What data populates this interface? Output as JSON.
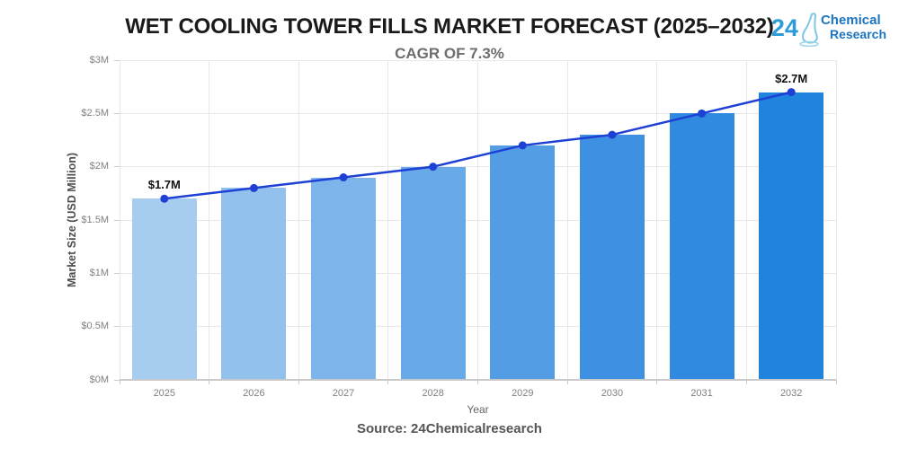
{
  "header": {
    "title": "WET COOLING TOWER FILLS MARKET FORECAST (2025–2032)",
    "subtitle": "CAGR OF 7.3%"
  },
  "logo": {
    "number": "24",
    "line1": "Chemical",
    "line2": "Research",
    "number_color": "#2d9bd8",
    "text_color": "#1d74c0",
    "flask_color": "#7fc6e5"
  },
  "footer": {
    "source": "Source: 24Chemicalresearch"
  },
  "chart_data": {
    "type": "bar",
    "overlay": "line",
    "categories": [
      "2025",
      "2026",
      "2027",
      "2028",
      "2029",
      "2030",
      "2031",
      "2032"
    ],
    "values": [
      1.7,
      1.8,
      1.9,
      2.0,
      2.2,
      2.3,
      2.5,
      2.7
    ],
    "data_labels": [
      "$1.7M",
      "",
      "",
      "",
      "",
      "",
      "",
      "$2.7M"
    ],
    "title": "WET COOLING TOWER FILLS MARKET FORECAST (2025–2032)",
    "subtitle": "CAGR OF 7.3%",
    "xlabel": "Year",
    "ylabel": "Market Size (USD Million)",
    "ylim": [
      0,
      3
    ],
    "y_ticks": [
      {
        "v": 0,
        "label": "$0M"
      },
      {
        "v": 0.5,
        "label": "$0.5M"
      },
      {
        "v": 1,
        "label": "$1M"
      },
      {
        "v": 1.5,
        "label": "$1.5M"
      },
      {
        "v": 2,
        "label": "$2M"
      },
      {
        "v": 2.5,
        "label": "$2.5M"
      },
      {
        "v": 3,
        "label": "$3M"
      }
    ],
    "grid": true,
    "legend": "none",
    "bar_colors": [
      "#a6cdf0",
      "#92c1ee",
      "#7db5ea",
      "#68a9e7",
      "#539de5",
      "#3e91e2",
      "#2f8ae0",
      "#2083de"
    ],
    "line_color": "#1e40d4"
  }
}
